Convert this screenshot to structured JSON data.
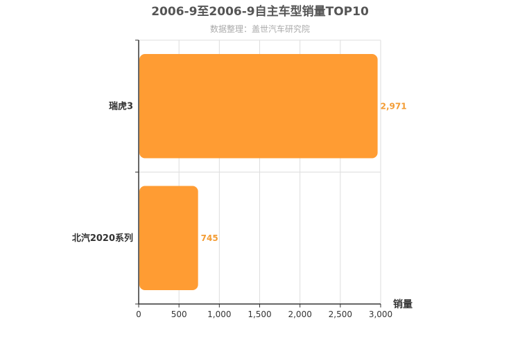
{
  "chart_data": {
    "type": "bar",
    "orientation": "horizontal",
    "title": "2006-9至2006-9自主车型销量TOP10",
    "subtitle": "数据整理：盖世汽车研究院",
    "xlabel": "销量",
    "ylabel": "",
    "xlim": [
      0,
      3000
    ],
    "xticks": [
      "0",
      "500",
      "1,000",
      "1,500",
      "2,000",
      "2,500",
      "3,000"
    ],
    "categories": [
      "瑞虎3",
      "北汽2020系列"
    ],
    "values": [
      2971,
      745
    ],
    "value_labels": [
      "2,971",
      "745"
    ],
    "grid": true,
    "legend": "none",
    "colors": {
      "bar": "#FF9C33",
      "label": "#F39C34",
      "title": "#555555",
      "subtitle": "#AAAAAA",
      "axis": "#333333",
      "grid": "#DDDDDD",
      "tick_text": "#333333"
    }
  }
}
